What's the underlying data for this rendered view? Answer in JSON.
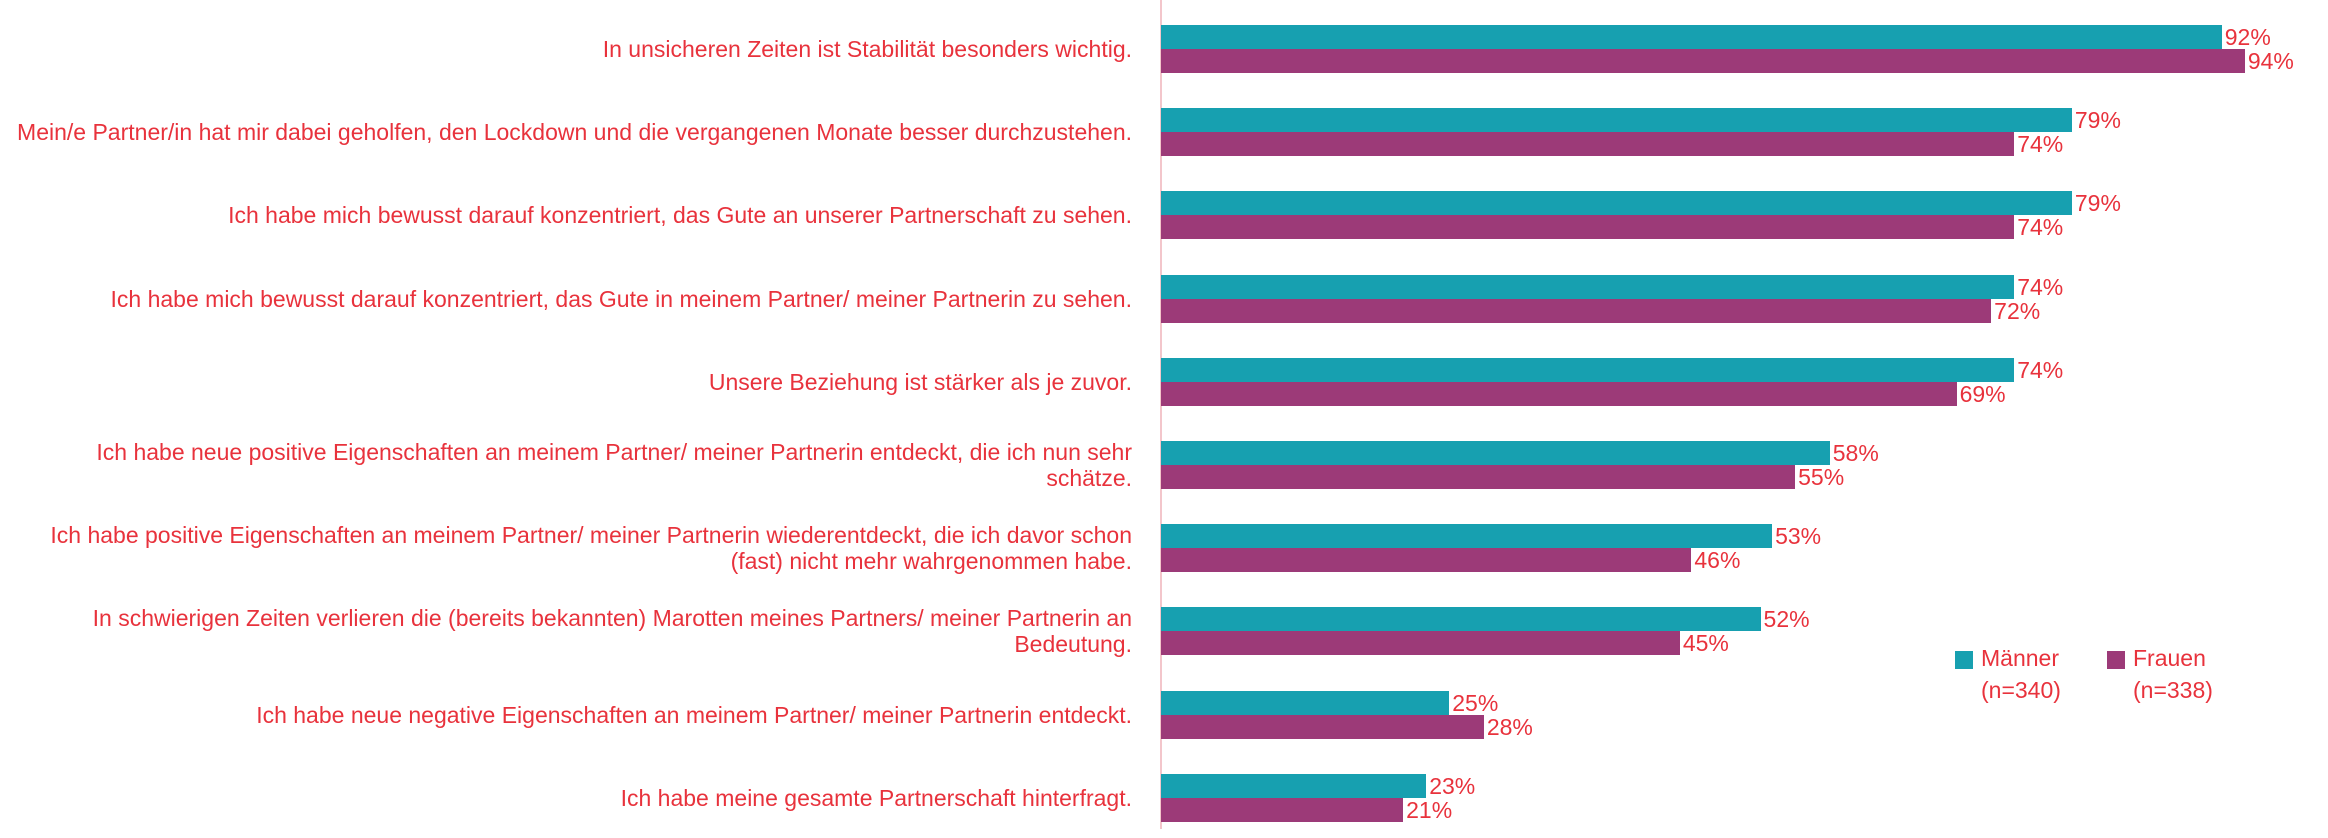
{
  "chart_data": {
    "type": "bar",
    "orientation": "horizontal",
    "categories": [
      "In unsicheren Zeiten ist Stabilität besonders wichtig.",
      "Mein/e Partner/in hat mir dabei geholfen, den Lockdown und die vergangenen Monate besser durchzustehen.",
      "Ich habe mich bewusst darauf konzentriert, das Gute an unserer Partnerschaft zu sehen.",
      "Ich habe mich bewusst darauf konzentriert, das Gute in meinem Partner/ meiner Partnerin zu sehen.",
      "Unsere Beziehung ist stärker als je zuvor.",
      "Ich habe neue positive Eigenschaften an meinem Partner/ meiner Partnerin entdeckt, die ich nun sehr schätze.",
      "Ich habe positive Eigenschaften an meinem Partner/ meiner Partnerin wiederentdeckt, die ich davor schon (fast) nicht mehr wahrgenommen habe.",
      "In schwierigen Zeiten verlieren die (bereits bekannten) Marotten meines Partners/ meiner Partnerin an Bedeutung.",
      "Ich habe neue negative Eigenschaften an meinem Partner/ meiner Partnerin entdeckt.",
      "Ich habe meine gesamte Partnerschaft hinterfragt."
    ],
    "series": [
      {
        "name": "Männer (n=340)",
        "color": "#17a0b0",
        "values": [
          92,
          79,
          79,
          74,
          74,
          58,
          53,
          52,
          25,
          23
        ],
        "value_labels": [
          "92%",
          "79%",
          "79%",
          "74%",
          "74%",
          "58%",
          "53%",
          "52%",
          "25%",
          "23%"
        ]
      },
      {
        "name": "Frauen (n=338)",
        "color": "#9c3a78",
        "values": [
          94,
          74,
          74,
          72,
          69,
          55,
          46,
          45,
          28,
          21
        ],
        "value_labels": [
          "94%",
          "74%",
          "74%",
          "72%",
          "69%",
          "55%",
          "46%",
          "45%",
          "28%",
          "21%"
        ]
      }
    ],
    "xlim": [
      0,
      100
    ],
    "legend": "lower right"
  }
}
